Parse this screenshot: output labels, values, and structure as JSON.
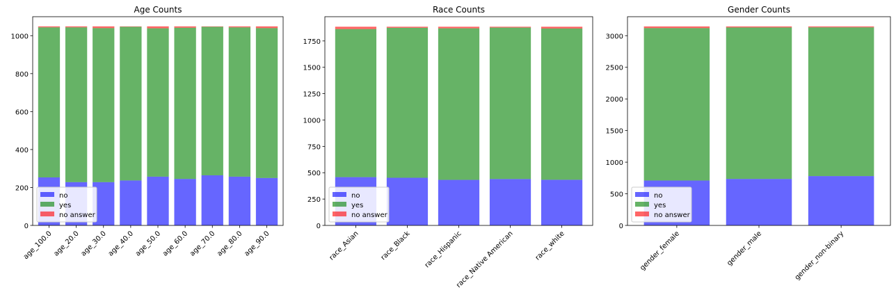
{
  "colors": {
    "no": "#0000ff",
    "yes": "#008000",
    "no_answer": "#ff0000",
    "bar_alpha": 0.6
  },
  "chart_data": [
    {
      "type": "bar",
      "stacked": true,
      "title": "Age Counts",
      "categories": [
        "age_100.0",
        "age_20.0",
        "age_30.0",
        "age_40.0",
        "age_50.0",
        "age_60.0",
        "age_70.0",
        "age_80.0",
        "age_90.0"
      ],
      "series": [
        {
          "name": "no",
          "values": [
            253,
            228,
            228,
            237,
            257,
            245,
            264,
            257,
            250
          ]
        },
        {
          "name": "yes",
          "values": [
            791,
            816,
            812,
            810,
            782,
            797,
            783,
            787,
            790
          ]
        },
        {
          "name": "no answer",
          "values": [
            5,
            5,
            9,
            2,
            10,
            7,
            2,
            5,
            9
          ]
        }
      ],
      "ylim": [
        0,
        1100
      ],
      "yticks": [
        0,
        200,
        400,
        600,
        800,
        1000
      ],
      "legend": "lower-left",
      "grid": false
    },
    {
      "type": "bar",
      "stacked": true,
      "title": "Race Counts",
      "categories": [
        "race_Asian",
        "race_Black",
        "race_Hispanic",
        "race_Native American",
        "race_white"
      ],
      "series": [
        {
          "name": "no",
          "values": [
            458,
            452,
            432,
            440,
            433
          ]
        },
        {
          "name": "yes",
          "values": [
            1405,
            1423,
            1438,
            1437,
            1435
          ]
        },
        {
          "name": "no answer",
          "values": [
            22,
            10,
            15,
            8,
            17
          ]
        }
      ],
      "ylim": [
        0,
        1980
      ],
      "yticks": [
        0,
        250,
        500,
        750,
        1000,
        1250,
        1500,
        1750
      ],
      "legend": "lower-left",
      "grid": false
    },
    {
      "type": "bar",
      "stacked": true,
      "title": "Gender Counts",
      "categories": [
        "gender_female",
        "gender_male",
        "gender_non-binary"
      ],
      "series": [
        {
          "name": "no",
          "values": [
            710,
            735,
            780
          ]
        },
        {
          "name": "yes",
          "values": [
            2410,
            2395,
            2352
          ]
        },
        {
          "name": "no answer",
          "values": [
            26,
            16,
            14
          ]
        }
      ],
      "ylim": [
        0,
        3300
      ],
      "yticks": [
        0,
        500,
        1000,
        1500,
        2000,
        2500,
        3000
      ],
      "legend": "lower-left",
      "grid": false
    }
  ]
}
